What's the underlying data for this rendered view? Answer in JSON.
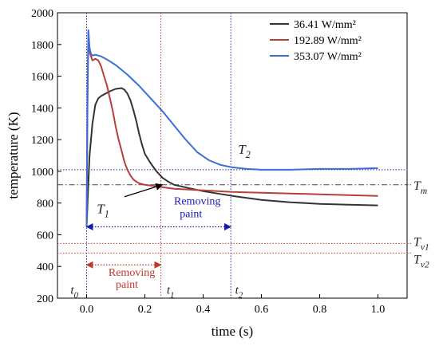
{
  "chart_data": {
    "type": "line",
    "title": "",
    "xlabel": "time (s)",
    "ylabel": "temperature (K)",
    "xlim": [
      -0.1,
      1.1
    ],
    "ylim": [
      200,
      2000
    ],
    "xticks": [
      0.0,
      0.2,
      0.4,
      0.6,
      0.8,
      1.0
    ],
    "xtick_labels": [
      "0.0",
      "0.2",
      "0.4",
      "0.6",
      "0.8",
      "1.0"
    ],
    "yticks": [
      200,
      400,
      600,
      800,
      1000,
      1200,
      1400,
      1600,
      1800,
      2000
    ],
    "ytick_labels": [
      "200",
      "400",
      "600",
      "800",
      "1000",
      "1200",
      "1400",
      "1600",
      "1800",
      "2000"
    ],
    "grid": false,
    "legend_position": "top-right",
    "series": [
      {
        "name": "36.41 W/mm²",
        "color": "#333333",
        "x": [
          0.0,
          0.005,
          0.01,
          0.02,
          0.03,
          0.04,
          0.05,
          0.06,
          0.08,
          0.1,
          0.12,
          0.13,
          0.14,
          0.15,
          0.16,
          0.17,
          0.18,
          0.19,
          0.2,
          0.22,
          0.24,
          0.26,
          0.28,
          0.3,
          0.35,
          0.4,
          0.5,
          0.6,
          0.7,
          0.8,
          0.9,
          1.0
        ],
        "y": [
          650,
          880,
          1100,
          1300,
          1420,
          1460,
          1475,
          1485,
          1505,
          1520,
          1525,
          1515,
          1490,
          1450,
          1390,
          1320,
          1240,
          1170,
          1110,
          1050,
          1000,
          960,
          935,
          915,
          895,
          875,
          845,
          820,
          805,
          795,
          790,
          785
        ]
      },
      {
        "name": "192.89 W/mm²",
        "color": "#b5403a",
        "x": [
          0.0,
          0.003,
          0.006,
          0.008,
          0.012,
          0.02,
          0.03,
          0.04,
          0.05,
          0.06,
          0.07,
          0.08,
          0.09,
          0.1,
          0.11,
          0.12,
          0.13,
          0.14,
          0.15,
          0.16,
          0.17,
          0.18,
          0.2,
          0.22,
          0.24,
          0.26,
          0.3,
          0.4,
          0.5,
          0.6,
          0.7,
          0.8,
          0.9,
          1.0
        ],
        "y": [
          650,
          1400,
          1880,
          1800,
          1740,
          1700,
          1710,
          1700,
          1660,
          1600,
          1540,
          1460,
          1380,
          1280,
          1200,
          1130,
          1060,
          1010,
          975,
          950,
          935,
          925,
          915,
          910,
          905,
          900,
          890,
          880,
          870,
          865,
          860,
          855,
          850,
          845
        ]
      },
      {
        "name": "353.07 W/mm²",
        "color": "#3a6fd8",
        "x": [
          0.0,
          0.003,
          0.006,
          0.01,
          0.015,
          0.02,
          0.03,
          0.04,
          0.05,
          0.07,
          0.1,
          0.14,
          0.18,
          0.22,
          0.26,
          0.3,
          0.34,
          0.38,
          0.42,
          0.46,
          0.5,
          0.55,
          0.6,
          0.7,
          0.8,
          0.9,
          1.0
        ],
        "y": [
          650,
          1500,
          1890,
          1780,
          1740,
          1730,
          1735,
          1730,
          1725,
          1705,
          1670,
          1610,
          1540,
          1460,
          1380,
          1290,
          1200,
          1120,
          1070,
          1040,
          1025,
          1015,
          1010,
          1010,
          1015,
          1015,
          1020
        ]
      }
    ],
    "reference_lines": [
      {
        "orientation": "horizontal",
        "value": 1010,
        "color": "#2a2aa8",
        "style": "dotted"
      },
      {
        "orientation": "horizontal",
        "value": 915,
        "color": "#444444",
        "style": "dashdot"
      },
      {
        "orientation": "horizontal",
        "value": 545,
        "color": "#c0392b",
        "style": "dotted"
      },
      {
        "orientation": "horizontal",
        "value": 485,
        "color": "#c0392b",
        "style": "dotted"
      },
      {
        "orientation": "vertical",
        "value": 0.0,
        "color": "#2a2aa8",
        "style": "dotted"
      },
      {
        "orientation": "vertical",
        "value": 0.255,
        "color": "#c0392b",
        "style": "dotted"
      },
      {
        "orientation": "vertical",
        "value": 0.495,
        "color": "#2a2aa8",
        "style": "dotted"
      }
    ],
    "arrows": [
      {
        "from": [
          0.0,
          650
        ],
        "to": [
          0.495,
          650
        ],
        "color": "#1a1ab0",
        "style": "dotted",
        "double": true
      },
      {
        "from": [
          0.0,
          410
        ],
        "to": [
          0.255,
          410
        ],
        "color": "#c0392b",
        "style": "dotted",
        "double": true
      },
      {
        "from": [
          0.13,
          840
        ],
        "to": [
          0.26,
          915
        ],
        "color": "#000000",
        "style": "solid",
        "double": false
      }
    ],
    "annotations": {
      "T2": {
        "main": "T",
        "sub": "2",
        "x": 0.52,
        "y": 1110,
        "color": "#222222"
      },
      "T1": {
        "main": "T",
        "sub": "1",
        "x": 0.035,
        "y": 735,
        "color": "#222222"
      },
      "removing_blue_1": {
        "text": "Removing",
        "x": 0.3,
        "y": 790,
        "color": "#1a1ab0"
      },
      "removing_blue_2": {
        "text": "paint",
        "x": 0.32,
        "y": 710,
        "color": "#1a1ab0"
      },
      "removing_red_1": {
        "text": "Removing",
        "x": 0.075,
        "y": 340,
        "color": "#c0392b"
      },
      "removing_red_2": {
        "text": "paint",
        "x": 0.1,
        "y": 265,
        "color": "#c0392b"
      },
      "t0": {
        "main": "t",
        "sub": "0",
        "x": -0.055,
        "y": 228
      },
      "t1": {
        "main": "t",
        "sub": "1",
        "x": 0.275,
        "y": 228
      },
      "t2": {
        "main": "t",
        "sub": "2",
        "x": 0.51,
        "y": 228
      }
    },
    "right_labels": [
      {
        "main": "T",
        "sub": "m",
        "y": 915
      },
      {
        "main": "T",
        "sub": "v1",
        "y": 560
      },
      {
        "main": "T",
        "sub": "v2",
        "y": 450
      }
    ]
  }
}
